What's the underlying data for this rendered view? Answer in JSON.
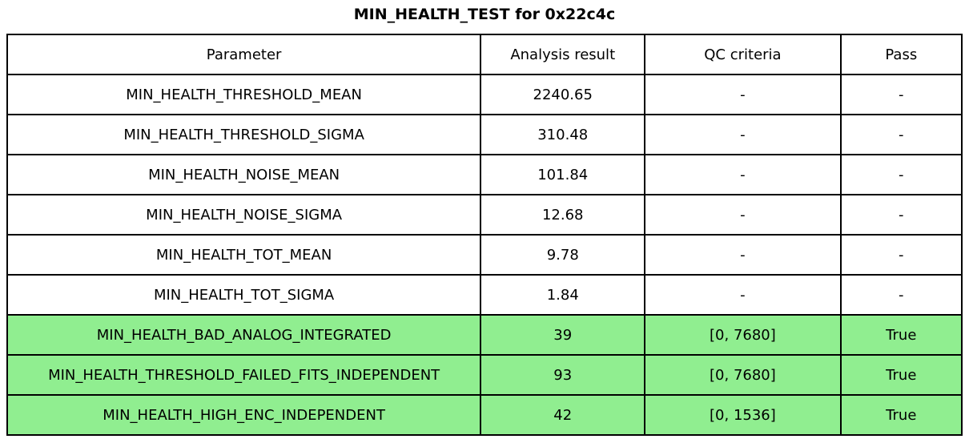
{
  "title": "MIN_HEALTH_TEST for 0x22c4c",
  "colors": {
    "background": "#FFFFFF",
    "border": "#000000",
    "pass_row_bg": "#90EE90",
    "text": "#000000"
  },
  "table": {
    "headers": [
      "Parameter",
      "Analysis result",
      "QC criteria",
      "Pass"
    ],
    "rows": [
      {
        "parameter": "MIN_HEALTH_THRESHOLD_MEAN",
        "result": "2240.65",
        "qc": "-",
        "pass": "-",
        "highlight": false
      },
      {
        "parameter": "MIN_HEALTH_THRESHOLD_SIGMA",
        "result": "310.48",
        "qc": "-",
        "pass": "-",
        "highlight": false
      },
      {
        "parameter": "MIN_HEALTH_NOISE_MEAN",
        "result": "101.84",
        "qc": "-",
        "pass": "-",
        "highlight": false
      },
      {
        "parameter": "MIN_HEALTH_NOISE_SIGMA",
        "result": "12.68",
        "qc": "-",
        "pass": "-",
        "highlight": false
      },
      {
        "parameter": "MIN_HEALTH_TOT_MEAN",
        "result": "9.78",
        "qc": "-",
        "pass": "-",
        "highlight": false
      },
      {
        "parameter": "MIN_HEALTH_TOT_SIGMA",
        "result": "1.84",
        "qc": "-",
        "pass": "-",
        "highlight": false
      },
      {
        "parameter": "MIN_HEALTH_BAD_ANALOG_INTEGRATED",
        "result": "39",
        "qc": "[0, 7680]",
        "pass": "True",
        "highlight": true
      },
      {
        "parameter": "MIN_HEALTH_THRESHOLD_FAILED_FITS_INDEPENDENT",
        "result": "93",
        "qc": "[0, 7680]",
        "pass": "True",
        "highlight": true
      },
      {
        "parameter": "MIN_HEALTH_HIGH_ENC_INDEPENDENT",
        "result": "42",
        "qc": "[0, 1536]",
        "pass": "True",
        "highlight": true
      }
    ]
  },
  "chart_data": {
    "type": "table",
    "title": "MIN_HEALTH_TEST for 0x22c4c",
    "columns": [
      "Parameter",
      "Analysis result",
      "QC criteria",
      "Pass"
    ],
    "rows": [
      [
        "MIN_HEALTH_THRESHOLD_MEAN",
        "2240.65",
        "-",
        "-"
      ],
      [
        "MIN_HEALTH_THRESHOLD_SIGMA",
        "310.48",
        "-",
        "-"
      ],
      [
        "MIN_HEALTH_NOISE_MEAN",
        "101.84",
        "-",
        "-"
      ],
      [
        "MIN_HEALTH_NOISE_SIGMA",
        "12.68",
        "-",
        "-"
      ],
      [
        "MIN_HEALTH_TOT_MEAN",
        "9.78",
        "-",
        "-"
      ],
      [
        "MIN_HEALTH_TOT_SIGMA",
        "1.84",
        "-",
        "-"
      ],
      [
        "MIN_HEALTH_BAD_ANALOG_INTEGRATED",
        "39",
        "[0, 7680]",
        "True"
      ],
      [
        "MIN_HEALTH_THRESHOLD_FAILED_FITS_INDEPENDENT",
        "93",
        "[0, 7680]",
        "True"
      ],
      [
        "MIN_HEALTH_HIGH_ENC_INDEPENDENT",
        "42",
        "[0, 1536]",
        "True"
      ]
    ],
    "highlighted_row_indices": [
      6,
      7,
      8
    ],
    "highlight_color": "#90EE90",
    "layout": "title centered above full-width bordered grid, all cells center-aligned"
  }
}
